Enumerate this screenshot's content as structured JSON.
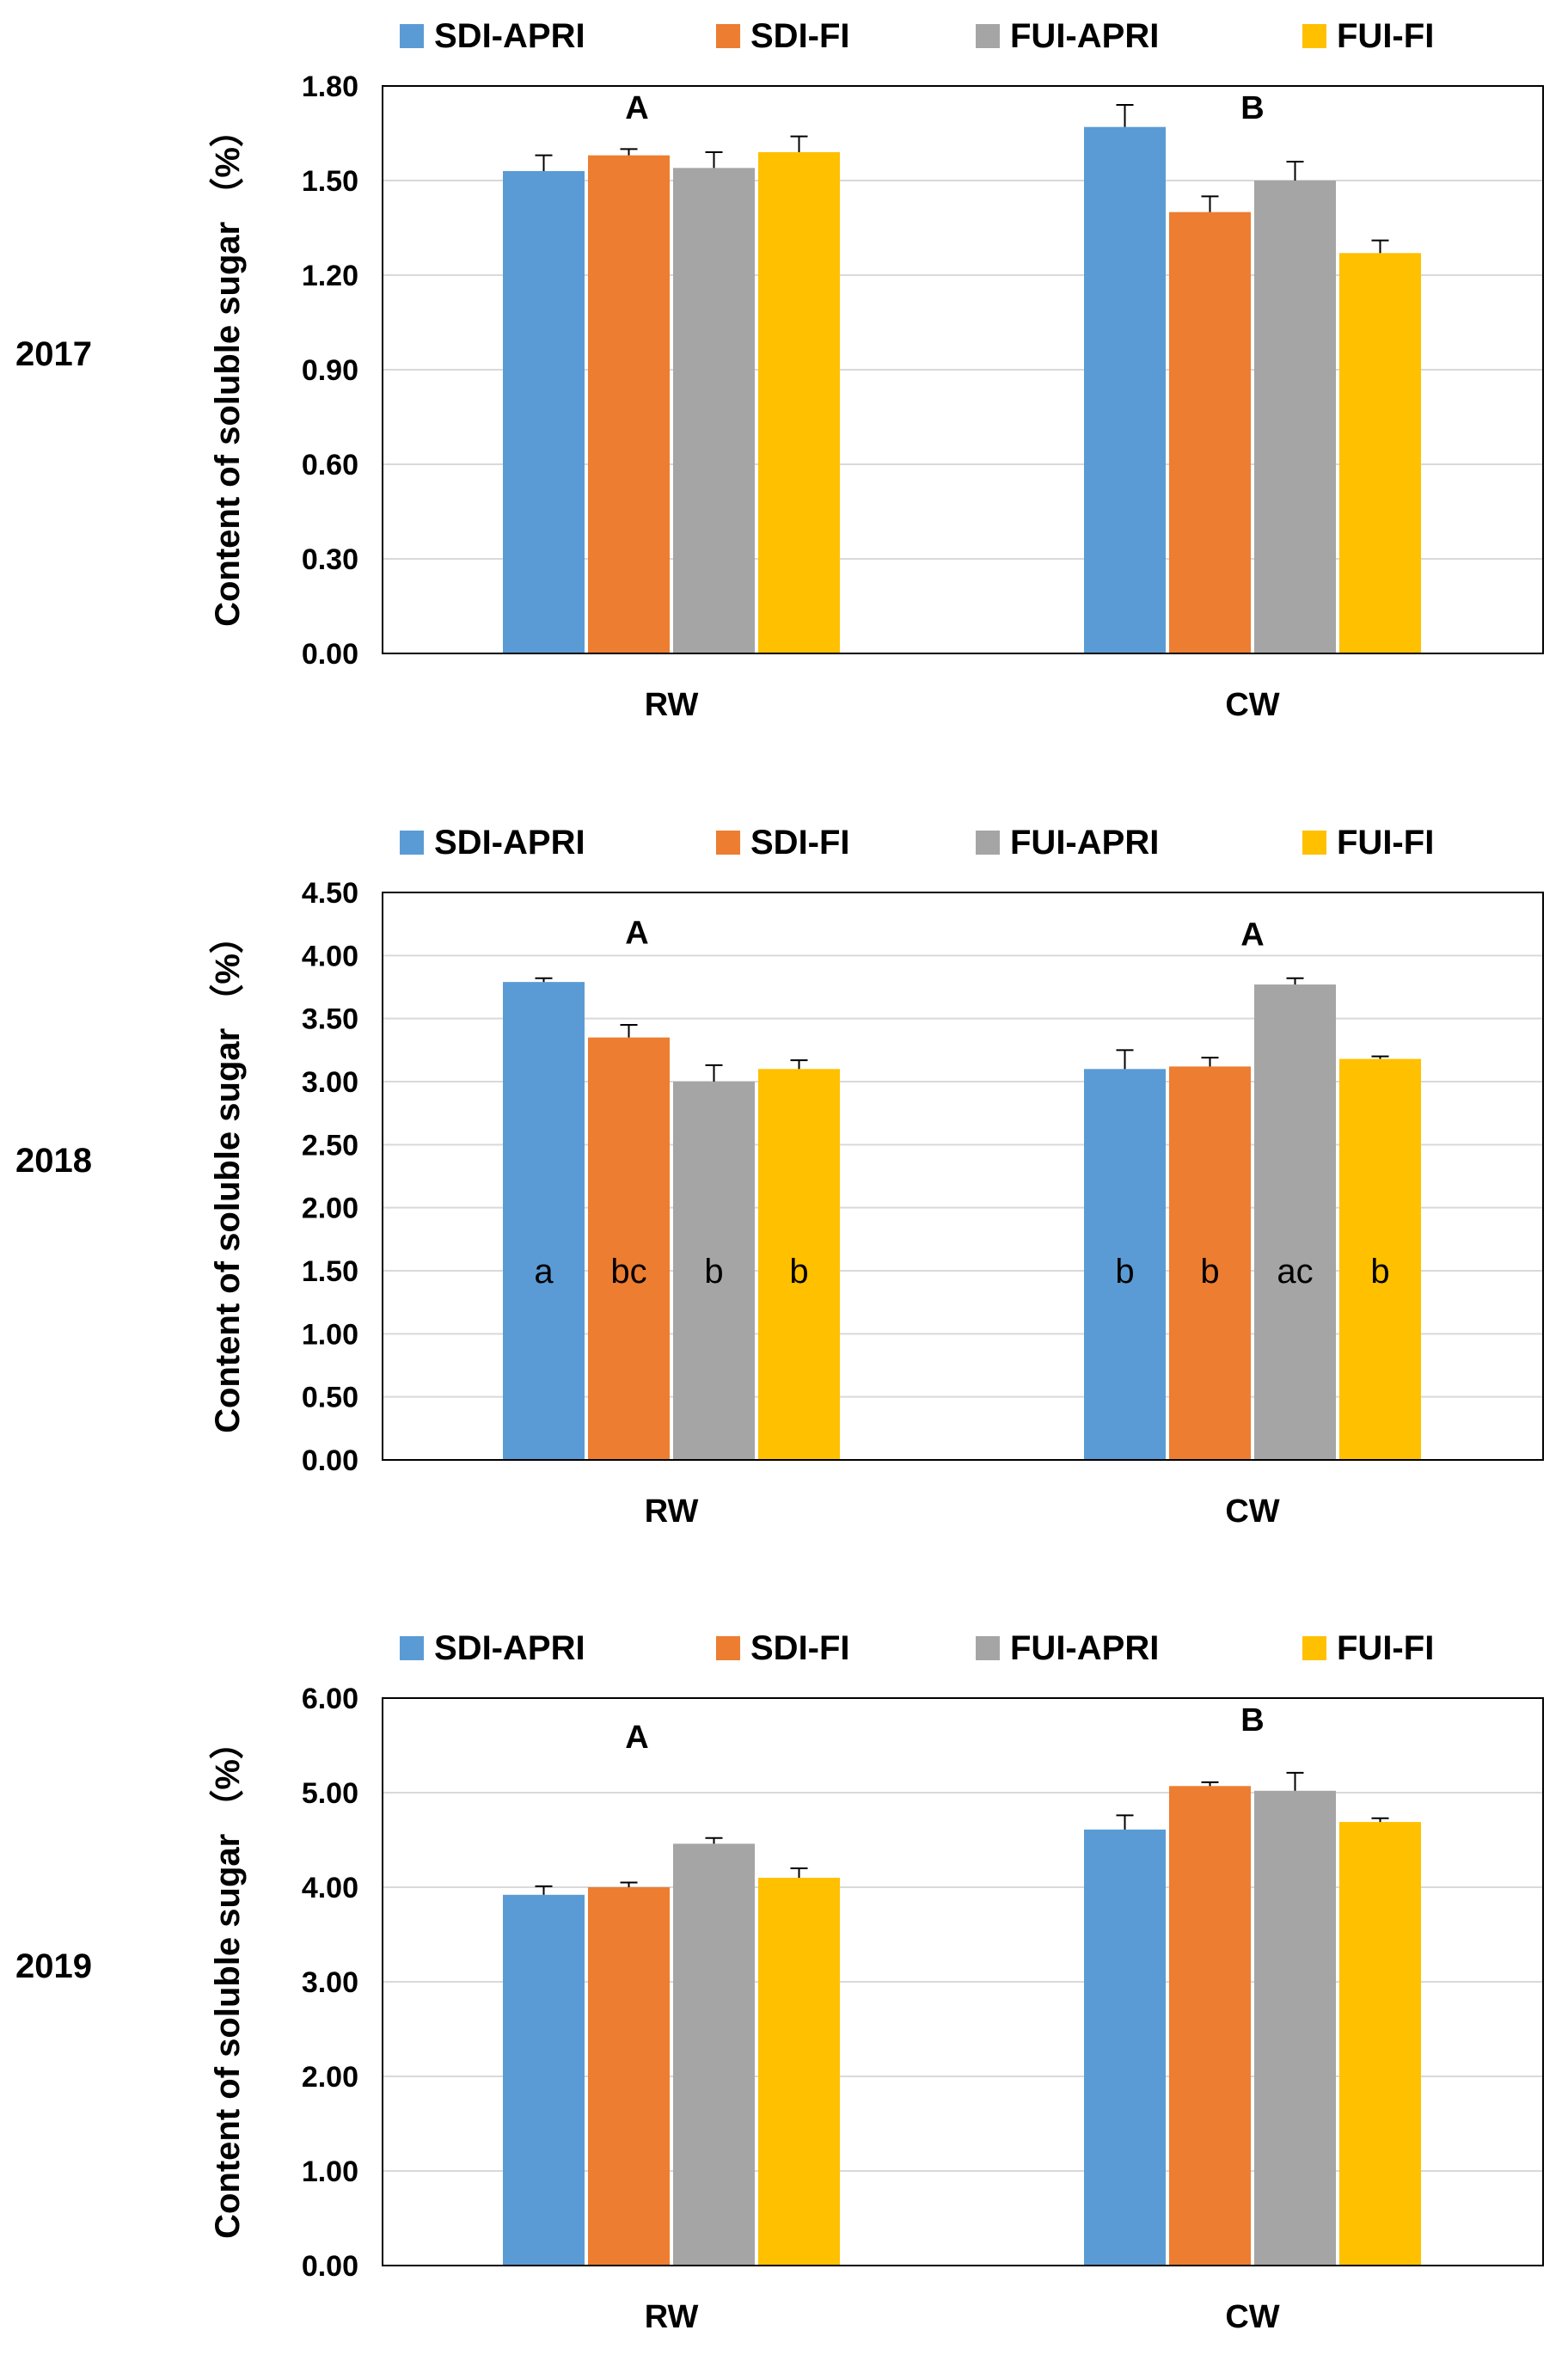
{
  "chart_data": [
    {
      "type": "bar",
      "year_label": "2017",
      "ylabel": "Content of soluble sugar （%）",
      "categories": [
        "RW",
        "CW"
      ],
      "series": [
        {
          "name": "SDI-APRI",
          "color": "#5b9bd5",
          "values": [
            1.53,
            1.67
          ],
          "errors": [
            0.05,
            0.07
          ]
        },
        {
          "name": "SDI-FI",
          "color": "#ed7d31",
          "values": [
            1.58,
            1.4
          ],
          "errors": [
            0.02,
            0.05
          ]
        },
        {
          "name": "FUI-APRI",
          "color": "#a5a5a5",
          "values": [
            1.54,
            1.5
          ],
          "errors": [
            0.05,
            0.06
          ]
        },
        {
          "name": "FUI-FI",
          "color": "#ffc000",
          "values": [
            1.59,
            1.27
          ],
          "errors": [
            0.05,
            0.04
          ]
        }
      ],
      "ylim": [
        0,
        1.8
      ],
      "yticks": [
        "0.00",
        "0.30",
        "0.60",
        "0.90",
        "1.20",
        "1.50",
        "1.80"
      ],
      "group_letters": [
        "A",
        "B"
      ],
      "bar_letters": []
    },
    {
      "type": "bar",
      "year_label": "2018",
      "ylabel": "Content of soluble sugar （%）",
      "categories": [
        "RW",
        "CW"
      ],
      "series": [
        {
          "name": "SDI-APRI",
          "color": "#5b9bd5",
          "values": [
            3.79,
            3.1
          ],
          "errors": [
            0.03,
            0.15
          ]
        },
        {
          "name": "SDI-FI",
          "color": "#ed7d31",
          "values": [
            3.35,
            3.12
          ],
          "errors": [
            0.1,
            0.07
          ]
        },
        {
          "name": "FUI-APRI",
          "color": "#a5a5a5",
          "values": [
            3.0,
            3.77
          ],
          "errors": [
            0.13,
            0.05
          ]
        },
        {
          "name": "FUI-FI",
          "color": "#ffc000",
          "values": [
            3.1,
            3.18
          ],
          "errors": [
            0.07,
            0.02
          ]
        }
      ],
      "ylim": [
        0,
        4.5
      ],
      "yticks": [
        "0.00",
        "0.50",
        "1.00",
        "1.50",
        "2.00",
        "2.50",
        "3.00",
        "3.50",
        "4.00",
        "4.50"
      ],
      "group_letters": [
        "A",
        "A"
      ],
      "bar_letters": [
        [
          "a",
          "bc",
          "b",
          "b"
        ],
        [
          "b",
          "b",
          "ac",
          "b"
        ]
      ]
    },
    {
      "type": "bar",
      "year_label": "2019",
      "ylabel": "Content of soluble sugar （%）",
      "categories": [
        "RW",
        "CW"
      ],
      "series": [
        {
          "name": "SDI-APRI",
          "color": "#5b9bd5",
          "values": [
            3.92,
            4.61
          ],
          "errors": [
            0.09,
            0.15
          ]
        },
        {
          "name": "SDI-FI",
          "color": "#ed7d31",
          "values": [
            4.0,
            5.07
          ],
          "errors": [
            0.05,
            0.04
          ]
        },
        {
          "name": "FUI-APRI",
          "color": "#a5a5a5",
          "values": [
            4.46,
            5.02
          ],
          "errors": [
            0.06,
            0.19
          ]
        },
        {
          "name": "FUI-FI",
          "color": "#ffc000",
          "values": [
            4.1,
            4.69
          ],
          "errors": [
            0.1,
            0.04
          ]
        }
      ],
      "ylim": [
        0,
        6
      ],
      "yticks": [
        "0.00",
        "1.00",
        "2.00",
        "3.00",
        "4.00",
        "5.00",
        "6.00"
      ],
      "group_letters": [
        "A",
        "B"
      ],
      "bar_letters": []
    }
  ]
}
